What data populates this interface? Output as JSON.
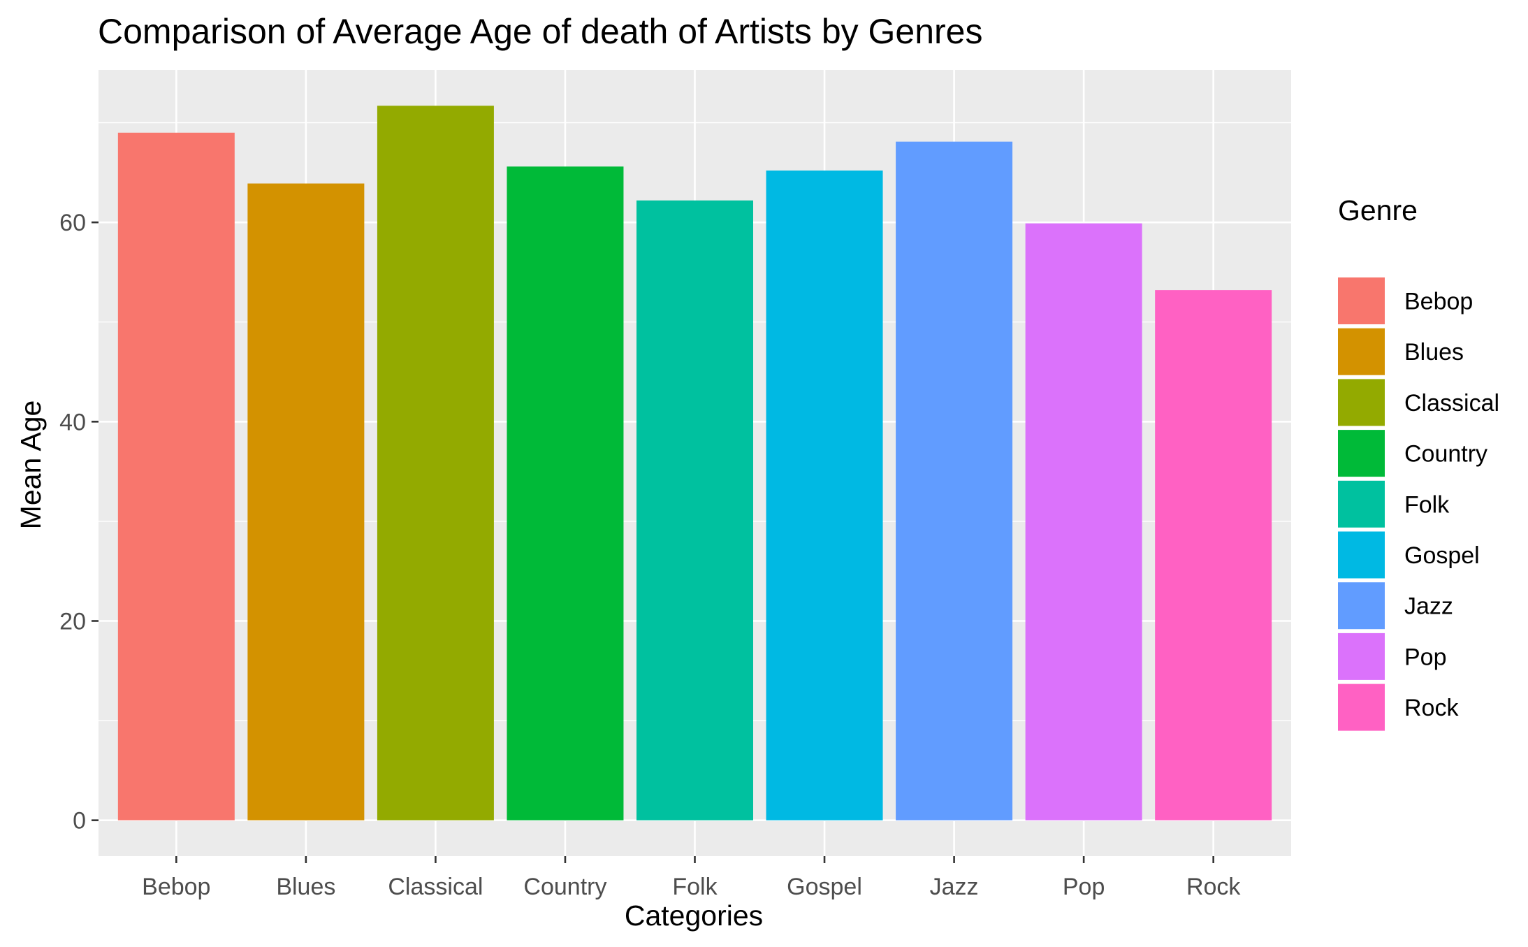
{
  "chart_data": {
    "type": "bar",
    "title": "Comparison of Average Age of death of Artists by Genres",
    "xlabel": "Categories",
    "ylabel": "Mean Age",
    "categories": [
      "Bebop",
      "Blues",
      "Classical",
      "Country",
      "Folk",
      "Gospel",
      "Jazz",
      "Pop",
      "Rock"
    ],
    "values": [
      69.0,
      63.9,
      71.7,
      65.6,
      62.2,
      65.2,
      68.1,
      59.9,
      53.2
    ],
    "colors": [
      "#F8766D",
      "#D39200",
      "#93AA00",
      "#00BA38",
      "#00C19F",
      "#00B9E3",
      "#619CFF",
      "#DB72FB",
      "#FF61C3"
    ],
    "ylim": [
      -3.6,
      75.3
    ],
    "yticks": [
      0,
      20,
      40,
      60
    ],
    "grid": true,
    "panel_background": "#EBEBEB",
    "legend": {
      "title": "Genre",
      "position": "right",
      "entries": [
        "Bebop",
        "Blues",
        "Classical",
        "Country",
        "Folk",
        "Gospel",
        "Jazz",
        "Pop",
        "Rock"
      ]
    }
  }
}
